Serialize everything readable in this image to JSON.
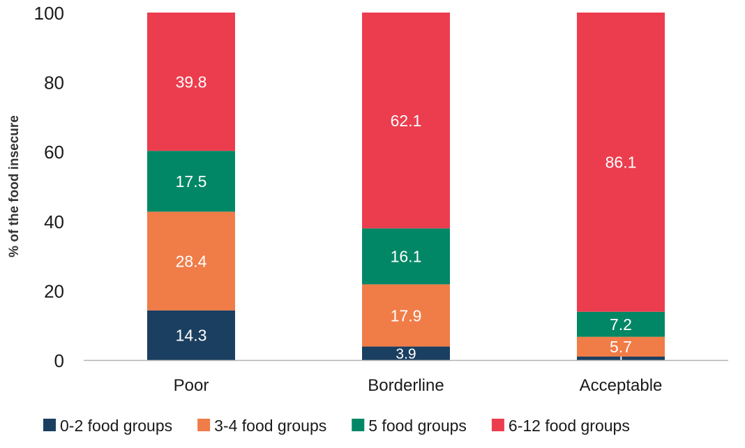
{
  "chart_data": {
    "type": "bar",
    "stacked": true,
    "title": "",
    "xlabel": "",
    "ylabel": "% of the food insecure",
    "ylim": [
      0,
      100
    ],
    "yticks": [
      0,
      20,
      40,
      60,
      80,
      100
    ],
    "grid": false,
    "legend_position": "bottom",
    "categories": [
      "Poor",
      "Borderline",
      "Acceptable"
    ],
    "series": [
      {
        "name": "0-2 food groups",
        "color": "#1b3f60",
        "values": [
          14.3,
          3.9,
          1
        ]
      },
      {
        "name": "3-4 food groups",
        "color": "#f07c48",
        "values": [
          28.4,
          17.9,
          5.7
        ]
      },
      {
        "name": "5 food groups",
        "color": "#028766",
        "values": [
          17.5,
          16.1,
          7.2
        ]
      },
      {
        "name": "6-12 food groups",
        "color": "#ec3d4e",
        "values": [
          39.8,
          62.1,
          86.1
        ]
      }
    ],
    "axis_color": "#b3b3b3"
  }
}
